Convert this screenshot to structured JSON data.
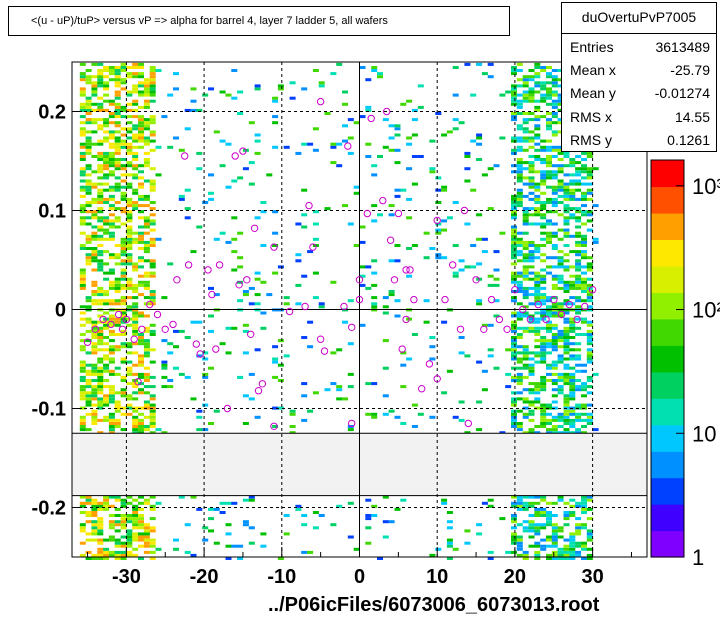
{
  "title": "<(u - uP)/tuP> versus  vP => alpha for barrel 4, layer 7 ladder 5, all wafers",
  "stats": {
    "name": "duOvertuPvP7005",
    "rows": [
      {
        "label": "Entries",
        "value": "3613489"
      },
      {
        "label": "Mean x",
        "value": "-25.79"
      },
      {
        "label": "Mean y",
        "value": "-0.01274"
      },
      {
        "label": "RMS x",
        "value": "14.55"
      },
      {
        "label": "RMS y",
        "value": "0.1261"
      }
    ]
  },
  "footer": "../P06icFiles/6073006_6073013.root",
  "chart_data": {
    "type": "heatmap",
    "xlim": [
      -37,
      37
    ],
    "ylim": [
      -0.25,
      0.25
    ],
    "x_ticks": [
      "-30",
      "-20",
      "-10",
      "0",
      "10",
      "20",
      "30"
    ],
    "x_tick_values": [
      -30,
      -20,
      -10,
      0,
      10,
      20,
      30
    ],
    "y_ticks": [
      "0.2",
      "0.1",
      "0",
      "-0.1",
      "-0.2"
    ],
    "y_tick_values": [
      0.2,
      0.1,
      0,
      -0.1,
      -0.2
    ],
    "grid": true,
    "empty_band": [
      -0.188,
      -0.125
    ],
    "colorbar": {
      "scale": "log",
      "min": 1,
      "max": 1000,
      "ticks": [
        "1",
        "10",
        "10²",
        "10³"
      ]
    },
    "profile_points": [
      {
        "x": -35,
        "y": -0.033
      },
      {
        "x": -34,
        "y": -0.02
      },
      {
        "x": -33,
        "y": -0.01
      },
      {
        "x": -32,
        "y": -0.015
      },
      {
        "x": -31,
        "y": -0.005
      },
      {
        "x": -30.5,
        "y": -0.02
      },
      {
        "x": -30,
        "y": -0.01
      },
      {
        "x": -29,
        "y": -0.03
      },
      {
        "x": -28.5,
        "y": -0.073
      },
      {
        "x": -28,
        "y": -0.02
      },
      {
        "x": -27,
        "y": 0.005
      },
      {
        "x": -26,
        "y": -0.005
      },
      {
        "x": -25,
        "y": -0.02
      },
      {
        "x": -24,
        "y": -0.015
      },
      {
        "x": -23.5,
        "y": 0.03
      },
      {
        "x": -22.5,
        "y": 0.155
      },
      {
        "x": -22,
        "y": 0.045
      },
      {
        "x": -21,
        "y": -0.035
      },
      {
        "x": -20.5,
        "y": -0.045
      },
      {
        "x": -19.5,
        "y": 0.04
      },
      {
        "x": -19,
        "y": 0.015
      },
      {
        "x": -18.5,
        "y": -0.04
      },
      {
        "x": -18,
        "y": 0.045
      },
      {
        "x": -17,
        "y": -0.1
      },
      {
        "x": -16,
        "y": 0.155
      },
      {
        "x": -15.5,
        "y": 0.025
      },
      {
        "x": -15,
        "y": 0.16
      },
      {
        "x": -14.5,
        "y": 0.03
      },
      {
        "x": -14,
        "y": -0.025
      },
      {
        "x": -13.5,
        "y": 0.082
      },
      {
        "x": -13,
        "y": -0.082
      },
      {
        "x": -12.5,
        "y": -0.075
      },
      {
        "x": -11,
        "y": -0.118
      },
      {
        "x": -11,
        "y": 0.063
      },
      {
        "x": -9,
        "y": -0.002
      },
      {
        "x": -7,
        "y": 0.003
      },
      {
        "x": -6.5,
        "y": 0.105
      },
      {
        "x": -6,
        "y": 0.063
      },
      {
        "x": -5,
        "y": 0.21
      },
      {
        "x": -5,
        "y": -0.03
      },
      {
        "x": -4.5,
        "y": -0.042
      },
      {
        "x": -2,
        "y": 0.003
      },
      {
        "x": -1.5,
        "y": 0.165
      },
      {
        "x": -1,
        "y": -0.018
      },
      {
        "x": -1,
        "y": -0.115
      },
      {
        "x": 0,
        "y": 0.03
      },
      {
        "x": 0,
        "y": 0.01
      },
      {
        "x": 1,
        "y": 0.097
      },
      {
        "x": 1.5,
        "y": 0.193
      },
      {
        "x": 3,
        "y": 0.11
      },
      {
        "x": 3.5,
        "y": 0.2
      },
      {
        "x": 4,
        "y": 0.07
      },
      {
        "x": 4.5,
        "y": 0.03
      },
      {
        "x": 5,
        "y": 0.097
      },
      {
        "x": 5.5,
        "y": -0.04
      },
      {
        "x": 6,
        "y": 0.04
      },
      {
        "x": 6,
        "y": -0.01
      },
      {
        "x": 6.5,
        "y": 0.04
      },
      {
        "x": 7,
        "y": 0.01
      },
      {
        "x": 8,
        "y": -0.08
      },
      {
        "x": 9,
        "y": -0.055
      },
      {
        "x": 10,
        "y": 0.09
      },
      {
        "x": 10,
        "y": -0.07
      },
      {
        "x": 11,
        "y": 0.01
      },
      {
        "x": 12,
        "y": 0.045
      },
      {
        "x": 13,
        "y": -0.02
      },
      {
        "x": 13.5,
        "y": 0.1
      },
      {
        "x": 14,
        "y": -0.115
      },
      {
        "x": 15,
        "y": 0.03
      },
      {
        "x": 16,
        "y": -0.02
      },
      {
        "x": 17,
        "y": 0.01
      },
      {
        "x": 18,
        "y": -0.01
      },
      {
        "x": 19,
        "y": -0.02
      },
      {
        "x": 20,
        "y": 0.02
      },
      {
        "x": 21,
        "y": 0.0
      },
      {
        "x": 22,
        "y": -0.01
      },
      {
        "x": 23,
        "y": 0.005
      },
      {
        "x": 24,
        "y": -0.01
      },
      {
        "x": 25,
        "y": 0.01
      },
      {
        "x": 26,
        "y": -0.005
      },
      {
        "x": 27,
        "y": 0.005
      },
      {
        "x": 28,
        "y": -0.01
      },
      {
        "x": 29,
        "y": 0.003
      },
      {
        "x": 30,
        "y": 0.02
      }
    ]
  },
  "colors": {
    "marker": "#cc00cc",
    "band": "#f2f2f2",
    "grid": "#000000",
    "palette": [
      "#8000ff",
      "#4000ff",
      "#0040ff",
      "#0090ff",
      "#00c8ff",
      "#00e0b0",
      "#00d060",
      "#00c000",
      "#40d800",
      "#90f000",
      "#d8f000",
      "#ffe800",
      "#ffa000",
      "#ff5000",
      "#ff0000"
    ]
  }
}
